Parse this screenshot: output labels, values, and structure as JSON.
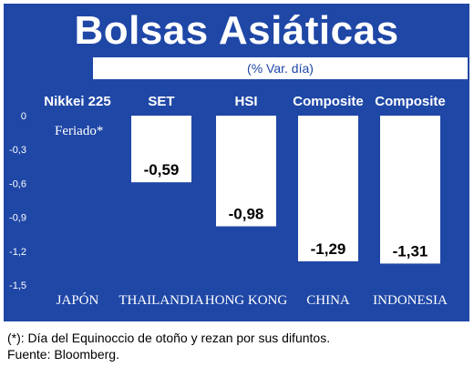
{
  "title": "Bolsas Asiáticas",
  "subtitle": "(% Var. día)",
  "chart_data": {
    "type": "bar",
    "title": "Bolsas Asiáticas",
    "subtitle": "(% Var. día)",
    "categories": [
      "JAPÓN",
      "THAILANDIA",
      "HONG KONG",
      "CHINA",
      "INDONESIA"
    ],
    "index_names": [
      "Nikkei 225",
      "SET",
      "HSI",
      "Composite",
      "Composite"
    ],
    "values": [
      null,
      -0.59,
      -0.98,
      -1.29,
      -1.31
    ],
    "value_labels": [
      "",
      "-0,59",
      "-0,98",
      "-1,29",
      "-1,31"
    ],
    "notes": [
      "Feriado*",
      "",
      "",
      "",
      ""
    ],
    "y_ticks": [
      "0",
      "-0,3",
      "-0,6",
      "-0,9",
      "-1,2",
      "-1,5"
    ],
    "ylim": [
      -1.5,
      0
    ],
    "grid": false,
    "bar_color": "#ffffff",
    "background_color": "#1f47a6"
  },
  "footnotes": [
    "(*): Día del Equinoccio de otoño y rezan por sus difuntos.",
    "Fuente: Bloomberg."
  ]
}
